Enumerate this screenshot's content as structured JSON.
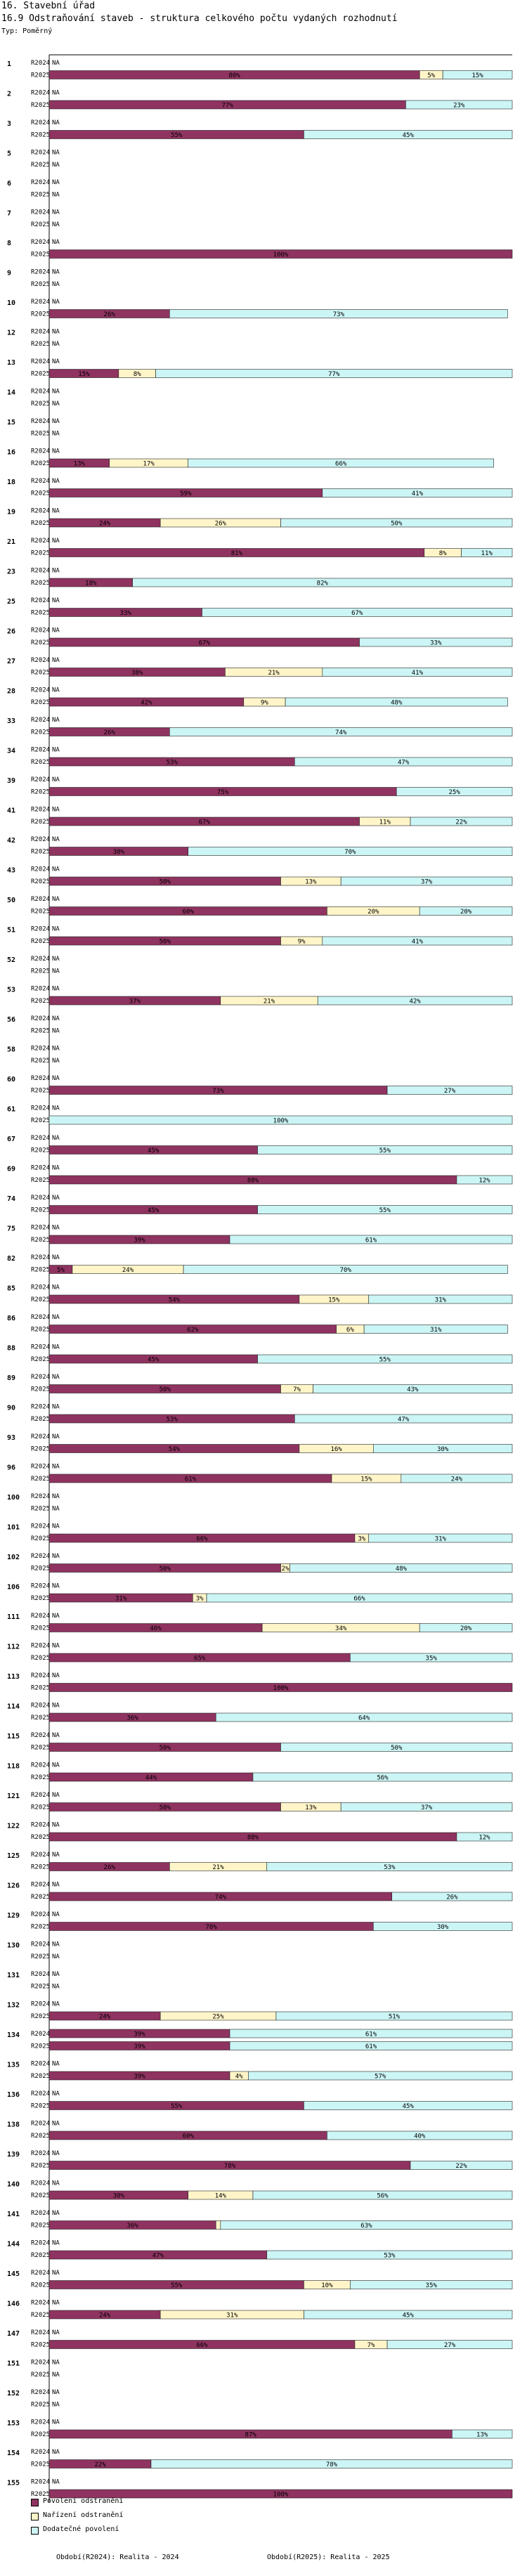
{
  "header": {
    "line1": "16. Stavební úřad",
    "line2": "16.9 Odstraňování staveb - struktura celkového počtu vydaných rozhodnutí",
    "line3": "Typ: Poměrný"
  },
  "legend": [
    {
      "label": "Povolení odstranění",
      "color": "#8f3360"
    },
    {
      "label": "Nařízení odstranění",
      "color": "#fff5c8"
    },
    {
      "label": "Dodatečné povolení",
      "color": "#ccf5f5"
    }
  ],
  "footer": {
    "left": "Období(R2024): Realita - 2024",
    "right": "Období(R2025): Realita - 2025"
  },
  "chart_data": {
    "type": "bar",
    "orientation": "horizontal",
    "stacked": "percent",
    "series_names": [
      "Povolení odstranění",
      "Nařízení odstranění",
      "Dodatečné povolení"
    ],
    "colors": [
      "#8f3360",
      "#fff5c8",
      "#ccf5f5"
    ],
    "row_labels": [
      "R2024",
      "R2025"
    ],
    "na_label": "NA",
    "xlim": [
      0,
      100
    ],
    "unit": "%",
    "groups": [
      {
        "id": "1",
        "r2024": null,
        "r2025": [
          80,
          5,
          15
        ]
      },
      {
        "id": "2",
        "r2024": null,
        "r2025": [
          77,
          0,
          23
        ]
      },
      {
        "id": "3",
        "r2024": null,
        "r2025": [
          55,
          0,
          45
        ]
      },
      {
        "id": "5",
        "r2024": null,
        "r2025": null
      },
      {
        "id": "6",
        "r2024": null,
        "r2025": null
      },
      {
        "id": "7",
        "r2024": null,
        "r2025": null
      },
      {
        "id": "8",
        "r2024": null,
        "r2025": [
          100,
          0,
          0
        ]
      },
      {
        "id": "9",
        "r2024": null,
        "r2025": null
      },
      {
        "id": "10",
        "r2024": null,
        "r2025": [
          26,
          0,
          73
        ]
      },
      {
        "id": "12",
        "r2024": null,
        "r2025": null
      },
      {
        "id": "13",
        "r2024": null,
        "r2025": [
          15,
          8,
          77
        ]
      },
      {
        "id": "14",
        "r2024": null,
        "r2025": null
      },
      {
        "id": "15",
        "r2024": null,
        "r2025": null
      },
      {
        "id": "16",
        "r2024": null,
        "r2025": [
          13,
          17,
          66
        ]
      },
      {
        "id": "18",
        "r2024": null,
        "r2025": [
          59,
          0,
          41
        ]
      },
      {
        "id": "19",
        "r2024": null,
        "r2025": [
          24,
          26,
          50
        ]
      },
      {
        "id": "21",
        "r2024": null,
        "r2025": [
          81,
          8,
          11
        ]
      },
      {
        "id": "23",
        "r2024": null,
        "r2025": [
          18,
          0,
          82
        ]
      },
      {
        "id": "25",
        "r2024": null,
        "r2025": [
          33,
          0,
          67
        ]
      },
      {
        "id": "26",
        "r2024": null,
        "r2025": [
          67,
          0,
          33
        ]
      },
      {
        "id": "27",
        "r2024": null,
        "r2025": [
          38,
          21,
          41
        ]
      },
      {
        "id": "28",
        "r2024": null,
        "r2025": [
          42,
          9,
          48
        ]
      },
      {
        "id": "33",
        "r2024": null,
        "r2025": [
          26,
          0,
          74
        ]
      },
      {
        "id": "34",
        "r2024": null,
        "r2025": [
          53,
          0,
          47
        ]
      },
      {
        "id": "39",
        "r2024": null,
        "r2025": [
          75,
          0,
          25
        ]
      },
      {
        "id": "41",
        "r2024": null,
        "r2025": [
          67,
          11,
          22
        ]
      },
      {
        "id": "42",
        "r2024": null,
        "r2025": [
          30,
          0,
          70
        ]
      },
      {
        "id": "43",
        "r2024": null,
        "r2025": [
          50,
          13,
          37
        ]
      },
      {
        "id": "50",
        "r2024": null,
        "r2025": [
          60,
          20,
          20
        ]
      },
      {
        "id": "51",
        "r2024": null,
        "r2025": [
          50,
          9,
          41
        ]
      },
      {
        "id": "52",
        "r2024": null,
        "r2025": null
      },
      {
        "id": "53",
        "r2024": null,
        "r2025": [
          37,
          21,
          42
        ]
      },
      {
        "id": "56",
        "r2024": null,
        "r2025": null
      },
      {
        "id": "58",
        "r2024": null,
        "r2025": null
      },
      {
        "id": "60",
        "r2024": null,
        "r2025": [
          73,
          0,
          27
        ]
      },
      {
        "id": "61",
        "r2024": null,
        "r2025": [
          0,
          0,
          100
        ]
      },
      {
        "id": "67",
        "r2024": null,
        "r2025": [
          45,
          0,
          55
        ]
      },
      {
        "id": "69",
        "r2024": null,
        "r2025": [
          88,
          0,
          12
        ]
      },
      {
        "id": "74",
        "r2024": null,
        "r2025": [
          45,
          0,
          55
        ]
      },
      {
        "id": "75",
        "r2024": null,
        "r2025": [
          39,
          0,
          61
        ]
      },
      {
        "id": "82",
        "r2024": null,
        "r2025": [
          5,
          24,
          70
        ]
      },
      {
        "id": "85",
        "r2024": null,
        "r2025": [
          54,
          15,
          31
        ]
      },
      {
        "id": "86",
        "r2024": null,
        "r2025": [
          62,
          6,
          31
        ]
      },
      {
        "id": "88",
        "r2024": null,
        "r2025": [
          45,
          0,
          55
        ]
      },
      {
        "id": "89",
        "r2024": null,
        "r2025": [
          50,
          7,
          43
        ]
      },
      {
        "id": "90",
        "r2024": null,
        "r2025": [
          53,
          0,
          47
        ]
      },
      {
        "id": "93",
        "r2024": null,
        "r2025": [
          54,
          16,
          30
        ]
      },
      {
        "id": "96",
        "r2024": null,
        "r2025": [
          61,
          15,
          24
        ]
      },
      {
        "id": "100",
        "r2024": null,
        "r2025": null
      },
      {
        "id": "101",
        "r2024": null,
        "r2025": [
          66,
          3,
          31
        ]
      },
      {
        "id": "102",
        "r2024": null,
        "r2025": [
          50,
          2,
          48
        ]
      },
      {
        "id": "106",
        "r2024": null,
        "r2025": [
          31,
          3,
          66
        ]
      },
      {
        "id": "111",
        "r2024": null,
        "r2025": [
          46,
          34,
          20
        ]
      },
      {
        "id": "112",
        "r2024": null,
        "r2025": [
          65,
          0,
          35
        ]
      },
      {
        "id": "113",
        "r2024": null,
        "r2025": [
          100,
          0,
          0
        ]
      },
      {
        "id": "114",
        "r2024": null,
        "r2025": [
          36,
          0,
          64
        ]
      },
      {
        "id": "115",
        "r2024": null,
        "r2025": [
          50,
          0,
          50
        ]
      },
      {
        "id": "118",
        "r2024": null,
        "r2025": [
          44,
          0,
          56
        ]
      },
      {
        "id": "121",
        "r2024": null,
        "r2025": [
          50,
          13,
          37
        ]
      },
      {
        "id": "122",
        "r2024": null,
        "r2025": [
          88,
          0,
          12
        ]
      },
      {
        "id": "125",
        "r2024": null,
        "r2025": [
          26,
          21,
          53
        ]
      },
      {
        "id": "126",
        "r2024": null,
        "r2025": [
          74,
          0,
          26
        ]
      },
      {
        "id": "129",
        "r2024": null,
        "r2025": [
          70,
          0,
          30
        ]
      },
      {
        "id": "130",
        "r2024": null,
        "r2025": null
      },
      {
        "id": "131",
        "r2024": null,
        "r2025": null
      },
      {
        "id": "132",
        "r2024": null,
        "r2025": [
          24,
          25,
          51
        ]
      },
      {
        "id": "134",
        "r2024": [
          39,
          0,
          61
        ],
        "r2025": [
          39,
          0,
          61
        ]
      },
      {
        "id": "135",
        "r2024": null,
        "r2025": [
          39,
          4,
          57
        ]
      },
      {
        "id": "136",
        "r2024": null,
        "r2025": [
          55,
          0,
          45
        ]
      },
      {
        "id": "138",
        "r2024": null,
        "r2025": [
          60,
          0,
          40
        ]
      },
      {
        "id": "139",
        "r2024": null,
        "r2025": [
          78,
          0,
          22
        ]
      },
      {
        "id": "140",
        "r2024": null,
        "r2025": [
          30,
          14,
          56
        ]
      },
      {
        "id": "141",
        "r2024": null,
        "r2025": [
          36,
          1,
          63
        ]
      },
      {
        "id": "144",
        "r2024": null,
        "r2025": [
          47,
          0,
          53
        ]
      },
      {
        "id": "145",
        "r2024": null,
        "r2025": [
          55,
          10,
          35
        ]
      },
      {
        "id": "146",
        "r2024": null,
        "r2025": [
          24,
          31,
          45
        ]
      },
      {
        "id": "147",
        "r2024": null,
        "r2025": [
          66,
          7,
          27
        ]
      },
      {
        "id": "151",
        "r2024": null,
        "r2025": null
      },
      {
        "id": "152",
        "r2024": null,
        "r2025": null
      },
      {
        "id": "153",
        "r2024": null,
        "r2025": [
          87,
          0,
          13
        ]
      },
      {
        "id": "154",
        "r2024": null,
        "r2025": [
          22,
          0,
          78
        ]
      },
      {
        "id": "155",
        "r2024": null,
        "r2025": [
          100,
          0,
          0
        ]
      }
    ]
  }
}
